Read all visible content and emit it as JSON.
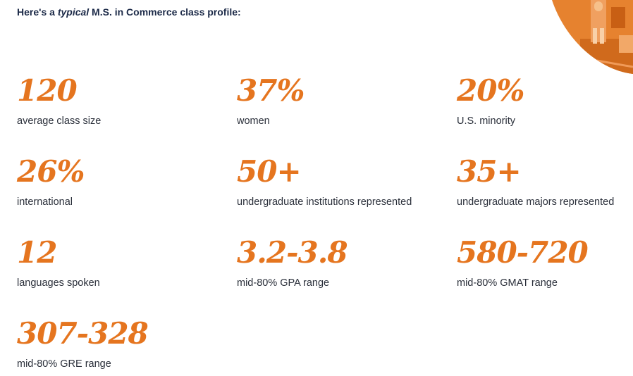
{
  "intro": {
    "prefix": "Here's a ",
    "emphasis": "typical",
    "suffix": " M.S. in Commerce class profile:"
  },
  "colors": {
    "accent": "#e5751f",
    "heading": "#1c2a48",
    "text": "#2a2f3a"
  },
  "stats": [
    {
      "value": "120",
      "label": "average class size"
    },
    {
      "value": "37%",
      "label": "women"
    },
    {
      "value": "20%",
      "label": "U.S. minority"
    },
    {
      "value": "26%",
      "label": "international"
    },
    {
      "value": "50+",
      "label": "undergraduate institutions represented"
    },
    {
      "value": "35+",
      "label": "undergraduate majors represented"
    },
    {
      "value": "12",
      "label": "languages spoken"
    },
    {
      "value": "3.2-3.8",
      "label": "mid-80% GPA range"
    },
    {
      "value": "580-720",
      "label": "mid-80% GMAT range"
    },
    {
      "value": "307-328",
      "label": "mid-80% GRE range"
    }
  ]
}
